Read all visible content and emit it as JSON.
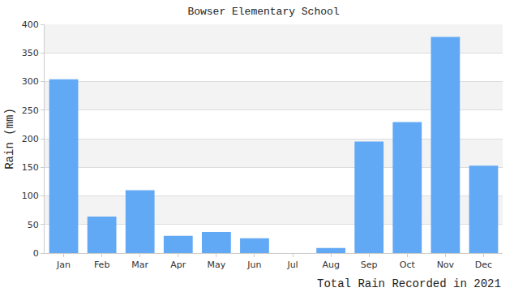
{
  "chart_data": {
    "type": "bar",
    "title": "Bowser Elementary School",
    "ylabel": "Rain (mm)",
    "xlabel": "Total Rain Recorded in 2021",
    "categories": [
      "Jan",
      "Feb",
      "Mar",
      "Apr",
      "May",
      "Jun",
      "Jul",
      "Aug",
      "Sep",
      "Oct",
      "Nov",
      "Dec"
    ],
    "values": [
      304,
      64,
      110,
      30,
      37,
      26,
      0,
      9,
      195,
      229,
      378,
      153
    ],
    "color": "#62a9f5",
    "ylim": [
      0,
      400
    ],
    "yticks": [
      0,
      50,
      100,
      150,
      200,
      250,
      300,
      350,
      400
    ],
    "grid": true
  }
}
